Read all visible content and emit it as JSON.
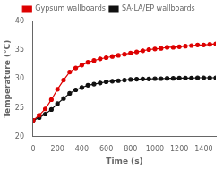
{
  "chart_data": {
    "type": "line",
    "xlabel": "Time (s)",
    "ylabel": "Temperature (°C)",
    "xlim": [
      0,
      1500
    ],
    "ylim": [
      20,
      40
    ],
    "xticks": [
      0,
      200,
      400,
      600,
      800,
      1000,
      1200,
      1400
    ],
    "yticks": [
      20,
      25,
      30,
      35,
      40
    ],
    "grid": false,
    "legend": "top",
    "x": [
      0,
      50,
      100,
      150,
      200,
      250,
      300,
      350,
      400,
      450,
      500,
      550,
      600,
      650,
      700,
      750,
      800,
      850,
      900,
      950,
      1000,
      1050,
      1100,
      1150,
      1200,
      1250,
      1300,
      1350,
      1400,
      1450,
      1500
    ],
    "series": [
      {
        "name": "Gypsum wallboards",
        "color": "#dd0000",
        "marker": "circle",
        "line_style": "solid",
        "values": [
          22.8,
          23.7,
          24.8,
          26.4,
          28.2,
          29.8,
          31.2,
          31.9,
          32.4,
          32.9,
          33.2,
          33.5,
          33.7,
          33.9,
          34.1,
          34.3,
          34.5,
          34.7,
          34.9,
          35.1,
          35.2,
          35.3,
          35.5,
          35.5,
          35.6,
          35.7,
          35.8,
          35.9,
          35.9,
          36.0,
          36.1
        ]
      },
      {
        "name": "SA-LA/EP wallboards",
        "color": "#111111",
        "marker": "circle",
        "line_style": "solid",
        "values": [
          22.8,
          23.3,
          23.9,
          24.7,
          25.7,
          26.6,
          27.5,
          28.1,
          28.5,
          28.9,
          29.1,
          29.3,
          29.5,
          29.6,
          29.7,
          29.8,
          29.9,
          29.95,
          30.0,
          30.0,
          30.05,
          30.05,
          30.1,
          30.1,
          30.15,
          30.15,
          30.15,
          30.2,
          30.2,
          30.2,
          30.2
        ]
      }
    ]
  }
}
